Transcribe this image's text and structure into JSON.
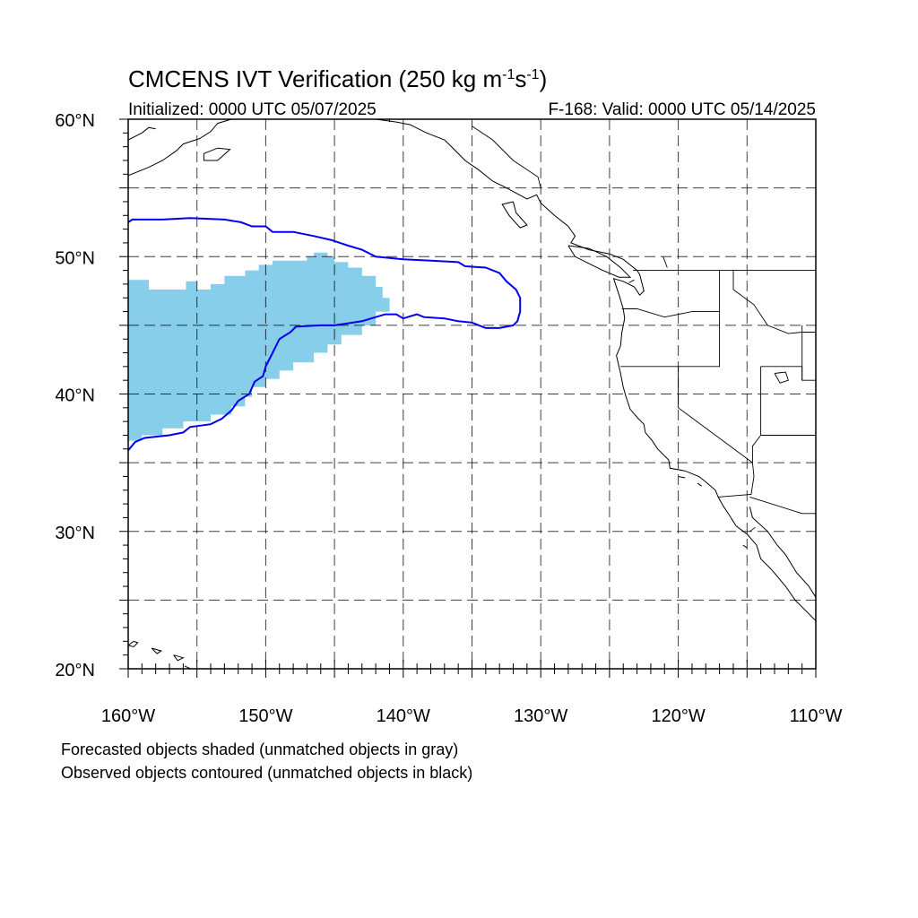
{
  "title_main": "CMCENS IVT Verification (250 kg m",
  "title_sup1": "-1",
  "title_mid": "s",
  "title_sup2": "-1",
  "title_end": ")",
  "initialized": "Initialized: 0000 UTC 05/07/2025",
  "valid": "F-168: Valid: 0000 UTC 05/14/2025",
  "footnote_forecast": "Forecasted objects shaded (unmatched objects in gray)",
  "footnote_observed": "Observed objects contoured (unmatched objects in black)",
  "colors": {
    "forecast_fill": "#87ceeb",
    "observed_contour": "#0000ee",
    "coast": "#000000",
    "grid": "#000000"
  },
  "map": {
    "lon_range": [
      -160,
      -110
    ],
    "lat_range": [
      20,
      60
    ],
    "grid_lons": [
      -155,
      -150,
      -145,
      -140,
      -135,
      -130,
      -125,
      -120,
      -115
    ],
    "grid_lats": [
      25,
      30,
      35,
      40,
      45,
      50,
      55
    ],
    "lon_labels": [
      {
        "lon": -160,
        "text": "160°W"
      },
      {
        "lon": -150,
        "text": "150°W"
      },
      {
        "lon": -140,
        "text": "140°W"
      },
      {
        "lon": -130,
        "text": "130°W"
      },
      {
        "lon": -120,
        "text": "120°W"
      },
      {
        "lon": -110,
        "text": "110°W"
      }
    ],
    "lat_labels": [
      {
        "lat": 60,
        "text": "60°N"
      },
      {
        "lat": 50,
        "text": "50°N"
      },
      {
        "lat": 40,
        "text": "40°N"
      },
      {
        "lat": 30,
        "text": "30°N"
      },
      {
        "lat": 20,
        "text": "20°N"
      }
    ],
    "forecast_object": [
      [
        -160,
        48.3
      ],
      [
        -158.5,
        48.3
      ],
      [
        -158.5,
        47.6
      ],
      [
        -155.8,
        47.6
      ],
      [
        -155.8,
        48.2
      ],
      [
        -155,
        48.2
      ],
      [
        -155,
        47.6
      ],
      [
        -154,
        47.6
      ],
      [
        -154,
        48.0
      ],
      [
        -153,
        48.0
      ],
      [
        -153,
        48.6
      ],
      [
        -151.5,
        48.6
      ],
      [
        -151.5,
        49.0
      ],
      [
        -150.5,
        49.0
      ],
      [
        -150.5,
        49.4
      ],
      [
        -149.5,
        49.4
      ],
      [
        -149.5,
        49.7
      ],
      [
        -147,
        49.7
      ],
      [
        -147,
        50.0
      ],
      [
        -146.5,
        50.0
      ],
      [
        -146.5,
        50.3
      ],
      [
        -145.5,
        50.3
      ],
      [
        -145.5,
        50.0
      ],
      [
        -145,
        50.0
      ],
      [
        -145,
        49.6
      ],
      [
        -144,
        49.6
      ],
      [
        -144,
        49.2
      ],
      [
        -143,
        49.2
      ],
      [
        -143,
        48.6
      ],
      [
        -142,
        48.6
      ],
      [
        -142,
        47.8
      ],
      [
        -141.5,
        47.8
      ],
      [
        -141.5,
        47.0
      ],
      [
        -141,
        47.0
      ],
      [
        -141,
        46.0
      ],
      [
        -142,
        46.0
      ],
      [
        -142,
        45.0
      ],
      [
        -143,
        45.0
      ],
      [
        -143,
        44.3
      ],
      [
        -144.5,
        44.3
      ],
      [
        -144.5,
        43.6
      ],
      [
        -145.5,
        43.6
      ],
      [
        -145.5,
        43.0
      ],
      [
        -146.5,
        43.0
      ],
      [
        -146.5,
        42.3
      ],
      [
        -148,
        42.3
      ],
      [
        -148,
        41.7
      ],
      [
        -149,
        41.7
      ],
      [
        -149,
        41.1
      ],
      [
        -150,
        41.1
      ],
      [
        -150,
        40.5
      ],
      [
        -151,
        40.5
      ],
      [
        -151,
        39.8
      ],
      [
        -151.5,
        39.8
      ],
      [
        -151.5,
        39.1
      ],
      [
        -152.5,
        39.1
      ],
      [
        -152.5,
        38.5
      ],
      [
        -154,
        38.5
      ],
      [
        -154,
        38.0
      ],
      [
        -156,
        38.0
      ],
      [
        -156,
        37.5
      ],
      [
        -157.5,
        37.5
      ],
      [
        -157.5,
        37.0
      ],
      [
        -159,
        37.0
      ],
      [
        -159,
        36.6
      ],
      [
        -160,
        36.6
      ]
    ],
    "observed_object": [
      [
        -160,
        52.5
      ],
      [
        -159.7,
        52.7
      ],
      [
        -157.5,
        52.7
      ],
      [
        -155.5,
        52.8
      ],
      [
        -153,
        52.7
      ],
      [
        -151.8,
        52.5
      ],
      [
        -151,
        52.2
      ],
      [
        -150,
        52.2
      ],
      [
        -149.5,
        51.8
      ],
      [
        -148,
        51.8
      ],
      [
        -146.5,
        51.5
      ],
      [
        -145.2,
        51.2
      ],
      [
        -144,
        50.8
      ],
      [
        -143,
        50.5
      ],
      [
        -142,
        50.0
      ],
      [
        -140,
        49.8
      ],
      [
        -138,
        49.7
      ],
      [
        -136,
        49.6
      ],
      [
        -135.5,
        49.3
      ],
      [
        -134,
        49.2
      ],
      [
        -133,
        48.8
      ],
      [
        -132.5,
        48.2
      ],
      [
        -131.8,
        47.6
      ],
      [
        -131.5,
        47.0
      ],
      [
        -131.5,
        46.0
      ],
      [
        -131.7,
        45.3
      ],
      [
        -132,
        45.0
      ],
      [
        -133,
        44.8
      ],
      [
        -134,
        44.8
      ],
      [
        -134.5,
        45.0
      ],
      [
        -135,
        45.2
      ],
      [
        -136,
        45.3
      ],
      [
        -137,
        45.5
      ],
      [
        -138.5,
        45.6
      ],
      [
        -139,
        45.8
      ],
      [
        -140,
        45.5
      ],
      [
        -140.5,
        45.8
      ],
      [
        -141.3,
        45.8
      ],
      [
        -142,
        45.6
      ],
      [
        -143,
        45.3
      ],
      [
        -145,
        45.0
      ],
      [
        -146,
        45.0
      ],
      [
        -147.8,
        44.9
      ],
      [
        -148.2,
        44.5
      ],
      [
        -149,
        44.0
      ],
      [
        -149.5,
        43.0
      ],
      [
        -150,
        42.0
      ],
      [
        -150.2,
        41.3
      ],
      [
        -150.8,
        40.9
      ],
      [
        -151.2,
        40.0
      ],
      [
        -152,
        39.5
      ],
      [
        -152.5,
        38.8
      ],
      [
        -153.2,
        38.2
      ],
      [
        -154,
        37.8
      ],
      [
        -155.5,
        37.6
      ],
      [
        -156,
        37.2
      ],
      [
        -157,
        37.0
      ],
      [
        -158.8,
        36.8
      ],
      [
        -159.5,
        36.5
      ],
      [
        -160,
        35.9
      ]
    ],
    "coastlines": [
      [
        [
          -160,
          55.9
        ],
        [
          -158.5,
          56.5
        ],
        [
          -157.5,
          57.0
        ],
        [
          -156.5,
          57.7
        ],
        [
          -156.0,
          58.2
        ],
        [
          -154.8,
          58.6
        ],
        [
          -154.0,
          59.1
        ],
        [
          -153.5,
          59.7
        ],
        [
          -152.5,
          60.0
        ]
      ],
      [
        [
          -160,
          58.5
        ],
        [
          -159.0,
          59.0
        ],
        [
          -158.5,
          59.4
        ],
        [
          -158.0,
          59.3
        ]
      ],
      [
        [
          -154.5,
          57.5
        ],
        [
          -153.5,
          57.9
        ],
        [
          -152.6,
          57.8
        ],
        [
          -153.5,
          57.0
        ],
        [
          -154.5,
          57.0
        ],
        [
          -154.5,
          57.5
        ]
      ],
      [
        [
          -146.5,
          60.0
        ],
        [
          -145.0,
          60.4
        ],
        [
          -144.0,
          60.0
        ],
        [
          -142.0,
          60.0
        ],
        [
          -140.5,
          59.8
        ],
        [
          -139.5,
          59.6
        ],
        [
          -138.3,
          59.0
        ],
        [
          -137.0,
          58.5
        ],
        [
          -136.5,
          58.0
        ],
        [
          -135.5,
          57.0
        ],
        [
          -134.5,
          56.3
        ],
        [
          -133.5,
          55.5
        ],
        [
          -132.5,
          55.0
        ],
        [
          -131.0,
          54.2
        ],
        [
          -130.3,
          54.5
        ],
        [
          -130.0,
          53.9
        ],
        [
          -129.0,
          53.0
        ],
        [
          -128.0,
          52.2
        ],
        [
          -127.5,
          51.5
        ],
        [
          -127.8,
          51.0
        ],
        [
          -126.5,
          50.5
        ],
        [
          -125.0,
          50.2
        ],
        [
          -124.0,
          49.8
        ],
        [
          -123.0,
          49.0
        ],
        [
          -122.8,
          48.7
        ],
        [
          -122.5,
          47.5
        ],
        [
          -122.8,
          47.2
        ],
        [
          -123.2,
          47.8
        ],
        [
          -124.0,
          48.2
        ],
        [
          -124.7,
          48.4
        ],
        [
          -124.3,
          47.2
        ],
        [
          -124.0,
          46.2
        ],
        [
          -123.9,
          45.5
        ],
        [
          -124.1,
          44.5
        ],
        [
          -124.2,
          43.5
        ],
        [
          -124.5,
          42.8
        ],
        [
          -124.2,
          41.5
        ],
        [
          -124.0,
          40.5
        ],
        [
          -123.8,
          39.8
        ],
        [
          -123.5,
          38.9
        ],
        [
          -122.9,
          38.2
        ],
        [
          -122.5,
          37.8
        ],
        [
          -122.4,
          37.2
        ],
        [
          -121.9,
          36.6
        ],
        [
          -121.5,
          36.0
        ],
        [
          -120.7,
          35.2
        ],
        [
          -120.6,
          34.6
        ],
        [
          -119.5,
          34.4
        ],
        [
          -118.5,
          34.0
        ],
        [
          -118.0,
          33.6
        ],
        [
          -117.3,
          33.0
        ],
        [
          -117.1,
          32.5
        ],
        [
          -116.7,
          31.8
        ],
        [
          -116.3,
          31.2
        ],
        [
          -115.8,
          30.4
        ],
        [
          -115.0,
          29.8
        ],
        [
          -114.3,
          29.0
        ],
        [
          -114.0,
          28.0
        ],
        [
          -113.2,
          27.2
        ],
        [
          -112.2,
          26.0
        ],
        [
          -111.5,
          25.0
        ],
        [
          -110.5,
          24.0
        ],
        [
          -110.0,
          23.5
        ]
      ],
      [
        [
          -114.8,
          31.8
        ],
        [
          -114.6,
          31.0
        ],
        [
          -113.5,
          30.0
        ],
        [
          -112.8,
          29.0
        ],
        [
          -112.2,
          28.3
        ],
        [
          -111.4,
          27.0
        ],
        [
          -110.5,
          26.0
        ],
        [
          -110.0,
          25.2
        ]
      ],
      [
        [
          -132.0,
          54.0
        ],
        [
          -131.8,
          53.2
        ],
        [
          -131.0,
          52.3
        ],
        [
          -131.5,
          52.1
        ],
        [
          -132.3,
          53.0
        ],
        [
          -132.8,
          53.8
        ],
        [
          -132.0,
          54.0
        ]
      ],
      [
        [
          -128.0,
          50.8
        ],
        [
          -126.5,
          50.6
        ],
        [
          -125.2,
          50.0
        ],
        [
          -124.2,
          49.2
        ],
        [
          -123.5,
          48.5
        ],
        [
          -124.3,
          48.5
        ],
        [
          -125.5,
          49.0
        ],
        [
          -126.5,
          49.5
        ],
        [
          -127.5,
          50.0
        ],
        [
          -128.0,
          50.8
        ]
      ],
      [
        [
          -160,
          21.7
        ],
        [
          -159.6,
          22.0
        ],
        [
          -159.3,
          21.9
        ],
        [
          -159.6,
          21.6
        ],
        [
          -160,
          21.7
        ]
      ],
      [
        [
          -158.3,
          21.5
        ],
        [
          -157.6,
          21.3
        ],
        [
          -157.9,
          21.1
        ],
        [
          -158.3,
          21.5
        ]
      ],
      [
        [
          -156.7,
          21.0
        ],
        [
          -156.0,
          20.8
        ],
        [
          -156.4,
          20.6
        ],
        [
          -156.7,
          21.0
        ]
      ],
      [
        [
          -155.9,
          20.2
        ],
        [
          -155.0,
          19.8
        ],
        [
          -154.9,
          19.5
        ]
      ],
      [
        [
          -118.6,
          33.5
        ],
        [
          -118.3,
          33.3
        ]
      ],
      [
        [
          -120.0,
          34.0
        ],
        [
          -119.5,
          33.9
        ]
      ],
      [
        [
          -115.3,
          29.0
        ],
        [
          -115.0,
          28.8
        ]
      ]
    ],
    "borders": [
      [
        [
          -141,
          60
        ],
        [
          -141,
          59.8
        ]
      ],
      [
        [
          -135,
          59.5
        ],
        [
          -133.5,
          58.5
        ],
        [
          -132,
          57.0
        ],
        [
          -130.2,
          55.8
        ],
        [
          -130,
          55.0
        ]
      ],
      [
        [
          -123.3,
          49.0
        ],
        [
          -110,
          49.0
        ]
      ],
      [
        [
          -124.1,
          46.2
        ],
        [
          -123,
          46.2
        ],
        [
          -121,
          45.6
        ],
        [
          -119,
          46.0
        ],
        [
          -117,
          46.0
        ],
        [
          -117,
          44.3
        ],
        [
          -117,
          42
        ],
        [
          -124.2,
          42
        ]
      ],
      [
        [
          -117,
          49
        ],
        [
          -117,
          46
        ]
      ],
      [
        [
          -116,
          49
        ],
        [
          -116,
          47.6
        ],
        [
          -114.5,
          46.5
        ],
        [
          -113.5,
          45
        ],
        [
          -112,
          44.4
        ],
        [
          -111,
          44.5
        ],
        [
          -110,
          44.5
        ]
      ],
      [
        [
          -120,
          42
        ],
        [
          -120,
          39
        ],
        [
          -114.6,
          35.0
        ]
      ],
      [
        [
          -114,
          42
        ],
        [
          -114,
          37
        ],
        [
          -114.6,
          36.2
        ],
        [
          -114.6,
          35.0
        ],
        [
          -114.5,
          34.0
        ],
        [
          -114.7,
          32.7
        ],
        [
          -117.1,
          32.5
        ]
      ],
      [
        [
          -114,
          37
        ],
        [
          -110,
          37
        ]
      ],
      [
        [
          -114,
          42
        ],
        [
          -111,
          42
        ],
        [
          -111,
          41
        ],
        [
          -110,
          41
        ]
      ],
      [
        [
          -111,
          45
        ],
        [
          -111,
          41
        ]
      ],
      [
        [
          -114.8,
          32.5
        ],
        [
          -111.0,
          31.3
        ],
        [
          -110,
          31.3
        ]
      ],
      [
        [
          -114.8,
          30.0
        ],
        [
          -114.4,
          30.3
        ]
      ]
    ],
    "lakes": [
      [
        [
          -113,
          41.5
        ],
        [
          -112.2,
          41.6
        ],
        [
          -112.0,
          41.0
        ],
        [
          -112.6,
          40.8
        ],
        [
          -113,
          41.5
        ]
      ],
      [
        [
          -121.1,
          50.0
        ],
        [
          -120.8,
          49.2
        ]
      ],
      [
        [
          -123.6,
          48.1
        ],
        [
          -123.2,
          48.3
        ]
      ]
    ]
  }
}
